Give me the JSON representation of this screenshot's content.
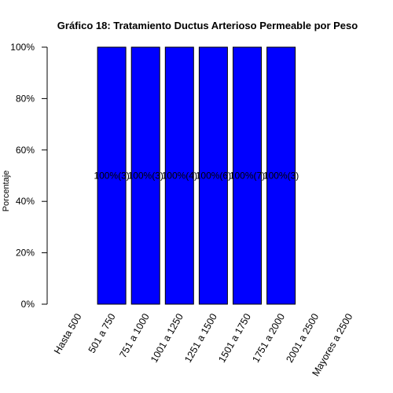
{
  "chart_data": {
    "type": "bar",
    "title": "Gráfico 18: Tratamiento Ductus Arterioso Permeable por Peso",
    "xlabel": "",
    "ylabel": "Porcentaje",
    "categories": [
      "Hasta 500",
      "501 a 750",
      "751 a 1000",
      "1001 a 1250",
      "1251 a 1500",
      "1501 a 1750",
      "1751 a 2000",
      "2001 a 2500",
      "Mayores a 2500"
    ],
    "values": [
      0,
      100,
      100,
      100,
      100,
      100,
      100,
      0,
      0
    ],
    "data_labels": [
      "",
      "100%(3)",
      "100%(3)",
      "100%(4)",
      "100%(6)",
      "100%(7)",
      "100%(3)",
      "",
      ""
    ],
    "ylim": [
      0,
      100
    ],
    "yticks": [
      0,
      20,
      40,
      60,
      80,
      100
    ],
    "ytick_labels": [
      "0%",
      "20%",
      "40%",
      "60%",
      "80%",
      "100%"
    ],
    "bar_color": "#0000ff",
    "grid": false,
    "legend": "none"
  }
}
